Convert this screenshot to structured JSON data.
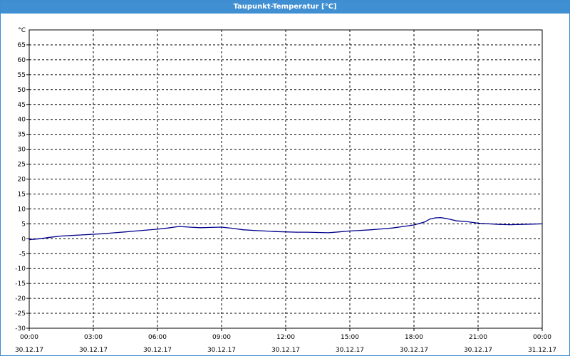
{
  "window": {
    "title": "Taupunkt-Temperatur [°C]"
  },
  "chart_data": {
    "type": "line",
    "title": "Taupunkt-Temperatur [°C]",
    "ylabel": "°C",
    "xlabel": "",
    "ylim": [
      -30,
      70
    ],
    "xlim": [
      "30.12.17 00:00",
      "31.12.17 00:00"
    ],
    "grid": true,
    "y_ticks": [
      "65",
      "60",
      "55",
      "50",
      "45",
      "40",
      "35",
      "30",
      "25",
      "20",
      "15",
      "10",
      "5",
      "0",
      "-5",
      "-10",
      "-15",
      "-20",
      "-25",
      "-30"
    ],
    "x_ticks": [
      {
        "time": "00:00",
        "date": "30.12.17"
      },
      {
        "time": "03:00",
        "date": "30.12.17"
      },
      {
        "time": "06:00",
        "date": "30.12.17"
      },
      {
        "time": "09:00",
        "date": "30.12.17"
      },
      {
        "time": "12:00",
        "date": "30.12.17"
      },
      {
        "time": "15:00",
        "date": "30.12.17"
      },
      {
        "time": "18:00",
        "date": "30.12.17"
      },
      {
        "time": "21:00",
        "date": "30.12.17"
      },
      {
        "time": "00:00",
        "date": "31.12.17"
      }
    ],
    "series": [
      {
        "name": "",
        "color": "#00008b",
        "x": [
          "00:00",
          "00:30",
          "01:00",
          "01:30",
          "02:00",
          "02:30",
          "03:00",
          "03:30",
          "04:00",
          "04:30",
          "05:00",
          "05:30",
          "06:00",
          "06:30",
          "07:00",
          "07:30",
          "08:00",
          "08:30",
          "09:00",
          "09:30",
          "10:00",
          "10:30",
          "11:00",
          "11:30",
          "12:00",
          "12:30",
          "13:00",
          "13:30",
          "14:00",
          "14:30",
          "15:00",
          "15:30",
          "16:00",
          "16:30",
          "17:00",
          "17:30",
          "18:00",
          "18:30",
          "18:45",
          "19:00",
          "19:15",
          "19:30",
          "20:00",
          "20:30",
          "21:00",
          "21:30",
          "22:00",
          "22:30",
          "23:00",
          "23:30",
          "24:00"
        ],
        "y": [
          -0.3,
          0.0,
          0.5,
          0.9,
          1.1,
          1.3,
          1.5,
          1.7,
          2.0,
          2.3,
          2.6,
          2.9,
          3.2,
          3.6,
          4.1,
          3.9,
          3.7,
          3.8,
          3.9,
          3.5,
          3.0,
          2.8,
          2.6,
          2.4,
          2.3,
          2.2,
          2.2,
          2.1,
          2.0,
          2.3,
          2.6,
          2.8,
          3.0,
          3.3,
          3.6,
          4.1,
          4.6,
          5.6,
          6.6,
          7.0,
          7.1,
          6.8,
          6.0,
          5.7,
          5.2,
          5.0,
          4.8,
          4.7,
          4.8,
          4.9,
          5.0
        ]
      }
    ]
  }
}
